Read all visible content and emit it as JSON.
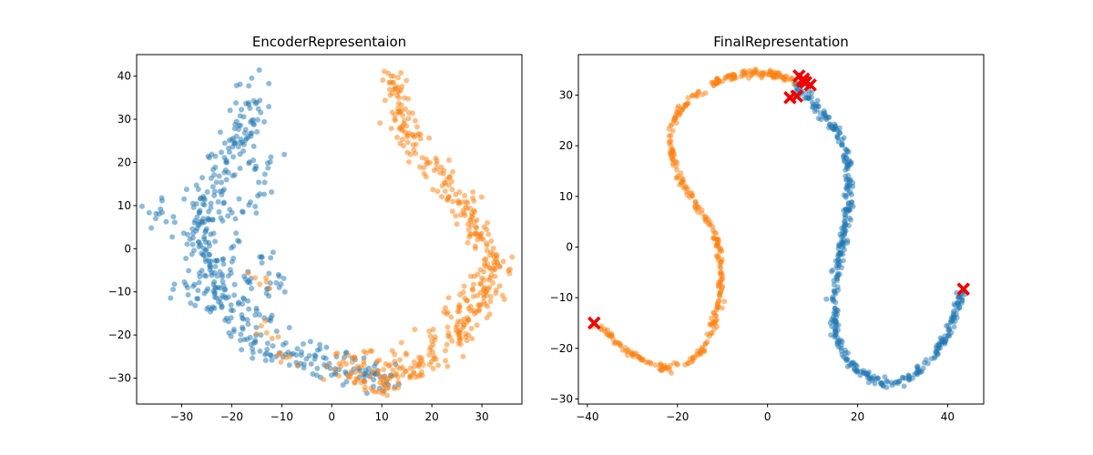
{
  "figure": {
    "background": "#ffffff"
  },
  "chart_data": [
    {
      "type": "scatter",
      "title": "EncoderRepresentaion",
      "xlabel": "",
      "ylabel": "",
      "xlim": [
        -39,
        38
      ],
      "ylim": [
        -36,
        45
      ],
      "xticks": [
        -30,
        -20,
        -10,
        0,
        10,
        20,
        30
      ],
      "yticks": [
        -30,
        -20,
        -10,
        0,
        10,
        20,
        30,
        40
      ],
      "grid": false,
      "series": [
        {
          "color": "#1f77b4",
          "alpha": 0.5,
          "marker": "circle",
          "shape": "arm",
          "points": [
            [
              -15,
              38
            ],
            [
              -15.5,
              32
            ],
            [
              -17,
              28
            ],
            [
              -19,
              25
            ],
            [
              -21,
              20
            ],
            [
              -22,
              15
            ],
            [
              -25,
              12
            ],
            [
              -27,
              8
            ],
            [
              -24,
              5
            ],
            [
              -29,
              4
            ],
            [
              -26,
              0
            ],
            [
              -23,
              -4
            ],
            [
              -25,
              -10
            ],
            [
              -22,
              -14
            ],
            [
              -20,
              -17
            ],
            [
              -17,
              -21
            ],
            [
              -14,
              -23
            ],
            [
              -11,
              -24
            ],
            [
              -7,
              -25
            ],
            [
              -3,
              -26
            ],
            [
              1,
              -27
            ],
            [
              5,
              -28
            ],
            [
              9,
              -30
            ],
            [
              12,
              -31
            ]
          ],
          "cluster_points": [
            [
              -35,
              10
            ],
            [
              -34,
              7
            ],
            [
              -30,
              -9
            ],
            [
              -28,
              -11
            ],
            [
              -19,
              -9
            ],
            [
              -18,
              -12
            ],
            [
              -16,
              -16
            ],
            [
              -12,
              -16
            ],
            [
              -15,
              -6
            ],
            [
              -14,
              -1
            ],
            [
              -18,
              2
            ],
            [
              -16,
              10
            ],
            [
              -14,
              14
            ],
            [
              -13,
              20
            ],
            [
              -18,
              27
            ],
            [
              -16,
              19
            ],
            [
              -20,
              9
            ],
            [
              -23,
              21
            ],
            [
              -21,
              -5
            ],
            [
              -12,
              -9
            ],
            [
              -10,
              -7
            ]
          ],
          "jitter": 1.8,
          "count": 360
        },
        {
          "color": "#ff7f0e",
          "alpha": 0.5,
          "marker": "circle",
          "shape": "arm",
          "points": [
            [
              13,
              40
            ],
            [
              13.5,
              35
            ],
            [
              14,
              30
            ],
            [
              15,
              27
            ],
            [
              16.5,
              24
            ],
            [
              18,
              21
            ],
            [
              20,
              19
            ],
            [
              22,
              16
            ],
            [
              24,
              13
            ],
            [
              26,
              9
            ],
            [
              28,
              6
            ],
            [
              30,
              2
            ],
            [
              32,
              -1
            ],
            [
              33,
              -4
            ],
            [
              32,
              -7
            ],
            [
              30,
              -10
            ],
            [
              28,
              -14
            ],
            [
              27,
              -18
            ],
            [
              25,
              -21
            ],
            [
              23,
              -23
            ],
            [
              20,
              -25
            ],
            [
              18,
              -27
            ],
            [
              15,
              -29
            ],
            [
              12,
              -30
            ],
            [
              9,
              -31
            ],
            [
              6,
              -30
            ],
            [
              3,
              -29
            ],
            [
              0,
              -27
            ]
          ],
          "cluster_points": [
            [
              -14,
              -7
            ],
            [
              -13,
              -19
            ],
            [
              -9,
              -26
            ],
            [
              3,
              -26
            ],
            [
              8,
              -24
            ],
            [
              11,
              -27
            ],
            [
              14,
              -25
            ],
            [
              20,
              -20
            ],
            [
              27,
              -12
            ],
            [
              31,
              -10
            ],
            [
              33,
              -2
            ],
            [
              29,
              -6
            ],
            [
              24,
              -15
            ],
            [
              26,
              -20
            ]
          ],
          "jitter": 1.6,
          "count": 380
        }
      ]
    },
    {
      "type": "scatter",
      "title": "FinalRepresentation",
      "xlabel": "",
      "ylabel": "",
      "xlim": [
        -42,
        48
      ],
      "ylim": [
        -31,
        38
      ],
      "xticks": [
        -40,
        -20,
        0,
        20,
        40
      ],
      "yticks": [
        -30,
        -20,
        -10,
        0,
        10,
        20,
        30
      ],
      "grid": false,
      "series": [
        {
          "color": "#ff7f0e",
          "alpha": 0.5,
          "marker": "circle",
          "shape": "curve",
          "points": [
            [
              -38,
              -15
            ],
            [
              -34,
              -18.5
            ],
            [
              -30,
              -21
            ],
            [
              -26,
              -23
            ],
            [
              -22,
              -24
            ],
            [
              -18,
              -23.2
            ],
            [
              -15,
              -21
            ],
            [
              -12.5,
              -17
            ],
            [
              -11,
              -12
            ],
            [
              -10.5,
              -7
            ],
            [
              -10.5,
              -2
            ],
            [
              -11.5,
              2
            ],
            [
              -13.5,
              5.5
            ],
            [
              -16,
              8.5
            ],
            [
              -18.5,
              12
            ],
            [
              -20.5,
              16
            ],
            [
              -21.5,
              20
            ],
            [
              -21.5,
              23.5
            ],
            [
              -20,
              26.5
            ],
            [
              -17.5,
              29
            ],
            [
              -14,
              31.5
            ],
            [
              -10,
              33
            ],
            [
              -6,
              34
            ],
            [
              -2,
              34.3
            ],
            [
              2,
              34
            ],
            [
              5,
              33
            ],
            [
              7,
              32
            ]
          ],
          "jitter": 0.35,
          "count": 380
        },
        {
          "color": "#1f77b4",
          "alpha": 0.5,
          "marker": "circle",
          "shape": "curve",
          "points": [
            [
              6,
              32
            ],
            [
              9,
              30
            ],
            [
              11,
              27.5
            ],
            [
              13.5,
              25
            ],
            [
              16,
              22
            ],
            [
              17.5,
              18
            ],
            [
              18,
              14
            ],
            [
              18,
              10
            ],
            [
              17.5,
              5
            ],
            [
              16.5,
              0
            ],
            [
              15.5,
              -5
            ],
            [
              15,
              -10
            ],
            [
              15,
              -14
            ],
            [
              15.5,
              -18
            ],
            [
              17,
              -21.5
            ],
            [
              19.5,
              -24
            ],
            [
              23,
              -26
            ],
            [
              26,
              -27
            ],
            [
              30,
              -26.5
            ],
            [
              34,
              -24
            ],
            [
              37.5,
              -21
            ],
            [
              40,
              -17
            ],
            [
              42,
              -12
            ],
            [
              43.5,
              -8.5
            ]
          ],
          "jitter": 0.45,
          "count": 420
        },
        {
          "color": "#ee0000",
          "alpha": 1,
          "marker": "x",
          "points": [
            [
              -38.5,
              -15
            ],
            [
              43.5,
              -8.3
            ],
            [
              5,
              29.5
            ],
            [
              6.5,
              29.8
            ],
            [
              7,
              33.8
            ],
            [
              8,
              33.2
            ],
            [
              8.5,
              32.5
            ],
            [
              9.5,
              32
            ],
            [
              7.8,
              32.8
            ]
          ]
        }
      ]
    }
  ]
}
